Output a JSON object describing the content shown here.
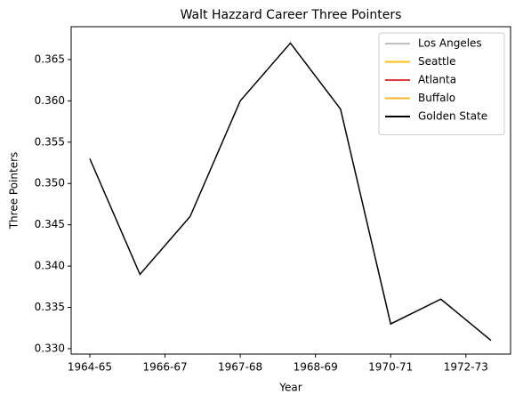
{
  "chart_data": {
    "type": "line",
    "title": "Walt Hazzard Career Three Pointers",
    "x_label": "Year",
    "y_label": "Three Pointers",
    "x": [
      0,
      1,
      2,
      3,
      4,
      5,
      6,
      7,
      8
    ],
    "series": [
      {
        "name": "Los Angeles",
        "color": "#c0c0c0",
        "values": [
          null,
          null,
          null,
          null,
          null,
          null,
          null,
          null,
          null
        ]
      },
      {
        "name": "Seattle",
        "color": "#ffc20e",
        "values": [
          null,
          null,
          null,
          null,
          null,
          null,
          null,
          null,
          null
        ]
      },
      {
        "name": "Atlanta",
        "color": "#e03a3e",
        "values": [
          null,
          null,
          null,
          null,
          null,
          null,
          null,
          null,
          null
        ]
      },
      {
        "name": "Buffalo",
        "color": "#fdb927",
        "values": [
          null,
          null,
          null,
          null,
          null,
          null,
          null,
          null,
          null
        ]
      },
      {
        "name": "Golden State",
        "color": "#000000",
        "values": [
          0.353,
          0.339,
          0.346,
          0.36,
          0.367,
          0.359,
          0.333,
          0.336,
          0.331
        ]
      }
    ],
    "xlim": [
      -0.372,
      8.39
    ],
    "xticks": [
      {
        "value": 0,
        "label": "1964-65"
      },
      {
        "value": 1.5,
        "label": "1966-67"
      },
      {
        "value": 3,
        "label": "1967-68"
      },
      {
        "value": 4.5,
        "label": "1968-69"
      },
      {
        "value": 6,
        "label": "1970-71"
      },
      {
        "value": 7.5,
        "label": "1972-73"
      }
    ],
    "ylim": [
      0.32935,
      0.36898
    ],
    "yticks": [
      {
        "value": 0.33,
        "label": "0.330"
      },
      {
        "value": 0.335,
        "label": "0.335"
      },
      {
        "value": 0.34,
        "label": "0.340"
      },
      {
        "value": 0.345,
        "label": "0.345"
      },
      {
        "value": 0.35,
        "label": "0.350"
      },
      {
        "value": 0.355,
        "label": "0.355"
      },
      {
        "value": 0.36,
        "label": "0.360"
      },
      {
        "value": 0.365,
        "label": "0.365"
      }
    ],
    "legend": "upper right",
    "grid": false
  }
}
